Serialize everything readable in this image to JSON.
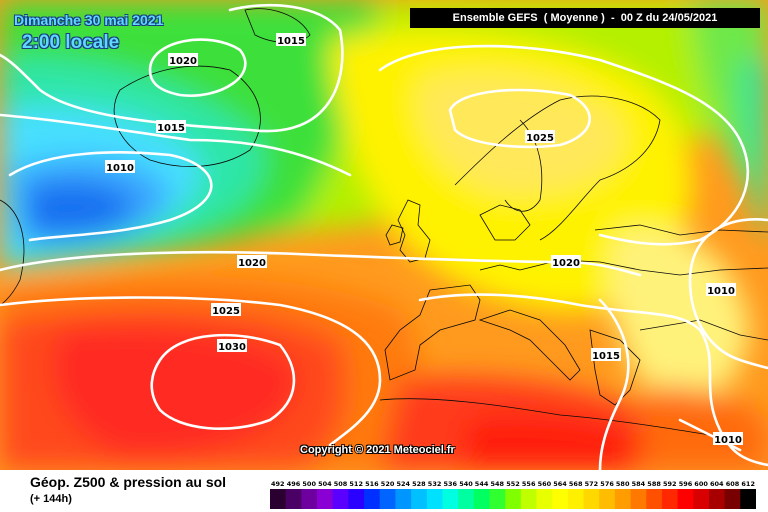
{
  "header": {
    "date": "Dimanche 30 mai 2021",
    "local_time": "2:00 locale",
    "run_info": "Ensemble GEFS  ( Moyenne )  -  00 Z du 24/05/2021"
  },
  "copyright": "Copyright © 2021 Meteociel.fr",
  "footer": {
    "product_title": "Géop. Z500 & pression au sol",
    "forecast_step": "(+ 144h)"
  },
  "isobar_labels": [
    "1015",
    "1020",
    "1015",
    "1010",
    "1020",
    "1025",
    "1030",
    "1025",
    "1020",
    "1015",
    "1010",
    "1010"
  ],
  "legend": {
    "values": [
      "492",
      "496",
      "500",
      "504",
      "508",
      "512",
      "516",
      "520",
      "524",
      "528",
      "532",
      "536",
      "540",
      "544",
      "548",
      "552",
      "556",
      "560",
      "564",
      "568",
      "572",
      "576",
      "580",
      "584",
      "588",
      "592",
      "596",
      "600",
      "604",
      "608",
      "612"
    ],
    "colors": [
      "#2a0030",
      "#4b0066",
      "#6e00a0",
      "#8a00d4",
      "#5a00ff",
      "#2a00ff",
      "#0030ff",
      "#0064ff",
      "#0096ff",
      "#00c0ff",
      "#00e0ff",
      "#00ffe0",
      "#00ffa0",
      "#00ff60",
      "#30ff30",
      "#80ff00",
      "#c0ff00",
      "#e8ff00",
      "#ffff00",
      "#fff000",
      "#ffd800",
      "#ffbc00",
      "#ff9c00",
      "#ff7800",
      "#ff5000",
      "#ff2800",
      "#ff0000",
      "#d80000",
      "#a80000",
      "#780000",
      "#000000"
    ]
  }
}
